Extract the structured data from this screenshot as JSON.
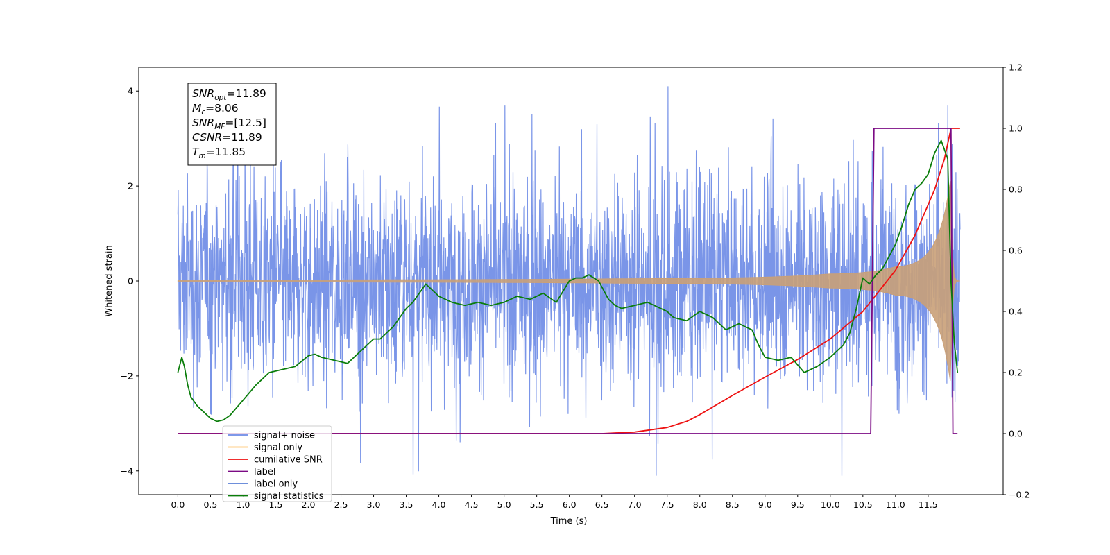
{
  "chart_data": {
    "type": "line",
    "xlabel": "Time (s)",
    "ylabel_left": "Whitened strain",
    "x_range": [
      -0.6,
      12.65
    ],
    "ylim_left": [
      -4.5,
      4.5
    ],
    "ylim_right": [
      -0.2,
      1.2
    ],
    "x_ticks": [
      "0.0",
      "0.5",
      "1.0",
      "1.5",
      "2.0",
      "2.5",
      "3.0",
      "3.5",
      "4.0",
      "4.5",
      "5.0",
      "5.5",
      "6.0",
      "6.5",
      "7.0",
      "7.5",
      "8.0",
      "8.5",
      "9.0",
      "9.5",
      "10.0",
      "10.5",
      "11.0",
      "11.5"
    ],
    "y_left_ticks": [
      "−4",
      "−2",
      "0",
      "2",
      "4"
    ],
    "y_right_ticks": [
      "−0.2",
      "0.0",
      "0.2",
      "0.4",
      "0.6",
      "0.8",
      "1.0",
      "1.2"
    ],
    "grid": false,
    "legend_position": "lower-left",
    "annotation": {
      "lines": [
        {
          "var": "SNR",
          "sub": "opt",
          "value": "=11.89"
        },
        {
          "var": "M",
          "sub": "c",
          "value": "=8.06"
        },
        {
          "var": "SNR",
          "sub": "MF",
          "value": "=[12.5]"
        },
        {
          "var": "CSNR",
          "sub": "",
          "value": "=11.89"
        },
        {
          "var": "T",
          "sub": "m",
          "value": "=11.85"
        }
      ]
    },
    "legend": [
      {
        "name": "signal+ noise",
        "color": "#6b8ae6"
      },
      {
        "name": "signal only",
        "color": "#ffbf60"
      },
      {
        "name": "cumilative SNR",
        "color": "#ee1111"
      },
      {
        "name": "label",
        "color": "#7b0a84"
      },
      {
        "name": "label only",
        "color": "#5a7fd6"
      },
      {
        "name": "signal statistics",
        "color": "#0a7d0a"
      }
    ],
    "series": [
      {
        "name": "signal+ noise",
        "axis": "left",
        "kind": "noise",
        "x_start": 0.0,
        "x_end": 11.99,
        "center": 0.0,
        "envelope_approx": [
          -3.0,
          3.0
        ],
        "peak_max": 4.1,
        "peak_min": -4.1,
        "color": "#6b8ae6"
      },
      {
        "name": "signal only",
        "axis": "left",
        "kind": "chirp",
        "x_start": 0.0,
        "x_end": 11.99,
        "merger_time": 11.85,
        "amplitude_at_0": 0.02,
        "amplitude_at_7": 0.05,
        "amplitude_at_10": 0.15,
        "amplitude_at_11": 0.3,
        "amplitude_peak": 2.2,
        "color": "#c9a078"
      },
      {
        "name": "cumilative SNR",
        "axis": "right",
        "x": [
          0.0,
          6.5,
          7.0,
          7.5,
          7.8,
          8.0,
          8.5,
          9.0,
          9.5,
          10.0,
          10.5,
          11.0,
          11.3,
          11.6,
          11.75,
          11.85,
          11.87,
          11.99
        ],
        "y": [
          0.0,
          0.0,
          0.005,
          0.02,
          0.04,
          0.062,
          0.125,
          0.185,
          0.243,
          0.31,
          0.4,
          0.535,
          0.65,
          0.8,
          0.9,
          1.0,
          1.0,
          1.0
        ],
        "color": "#ee1111"
      },
      {
        "name": "label",
        "axis": "right",
        "x": [
          0.0,
          10.62,
          10.67,
          11.85,
          11.88,
          11.95
        ],
        "y": [
          0.0,
          0.0,
          1.0,
          1.0,
          0.0,
          0.0
        ],
        "color": "#7b0a84"
      },
      {
        "name": "signal statistics",
        "axis": "right",
        "x": [
          0.0,
          0.06,
          0.1,
          0.15,
          0.2,
          0.3,
          0.4,
          0.5,
          0.6,
          0.7,
          0.8,
          1.0,
          1.2,
          1.4,
          1.6,
          1.8,
          2.0,
          2.1,
          2.2,
          2.4,
          2.6,
          2.8,
          3.0,
          3.1,
          3.3,
          3.5,
          3.6,
          3.8,
          4.0,
          4.2,
          4.4,
          4.6,
          4.8,
          5.0,
          5.2,
          5.4,
          5.6,
          5.8,
          6.0,
          6.1,
          6.2,
          6.3,
          6.45,
          6.6,
          6.7,
          6.8,
          7.0,
          7.2,
          7.4,
          7.5,
          7.6,
          7.8,
          8.0,
          8.2,
          8.4,
          8.5,
          8.6,
          8.8,
          8.9,
          9.0,
          9.2,
          9.4,
          9.6,
          9.8,
          10.0,
          10.2,
          10.3,
          10.4,
          10.5,
          10.6,
          10.7,
          10.8,
          10.9,
          11.0,
          11.1,
          11.2,
          11.3,
          11.4,
          11.5,
          11.6,
          11.7,
          11.8,
          11.85,
          11.9,
          11.95
        ],
        "y": [
          0.2,
          0.25,
          0.22,
          0.16,
          0.12,
          0.09,
          0.07,
          0.05,
          0.04,
          0.045,
          0.06,
          0.11,
          0.16,
          0.2,
          0.21,
          0.22,
          0.255,
          0.26,
          0.25,
          0.24,
          0.23,
          0.27,
          0.31,
          0.31,
          0.35,
          0.41,
          0.43,
          0.49,
          0.45,
          0.43,
          0.42,
          0.43,
          0.42,
          0.43,
          0.45,
          0.44,
          0.46,
          0.43,
          0.5,
          0.51,
          0.51,
          0.52,
          0.5,
          0.44,
          0.42,
          0.41,
          0.42,
          0.43,
          0.41,
          0.4,
          0.38,
          0.37,
          0.4,
          0.38,
          0.34,
          0.35,
          0.36,
          0.34,
          0.29,
          0.25,
          0.24,
          0.25,
          0.2,
          0.22,
          0.25,
          0.29,
          0.33,
          0.41,
          0.51,
          0.49,
          0.52,
          0.54,
          0.58,
          0.62,
          0.68,
          0.75,
          0.8,
          0.82,
          0.85,
          0.92,
          0.96,
          0.9,
          0.5,
          0.3,
          0.2
        ],
        "color": "#0a7d0a"
      }
    ]
  }
}
